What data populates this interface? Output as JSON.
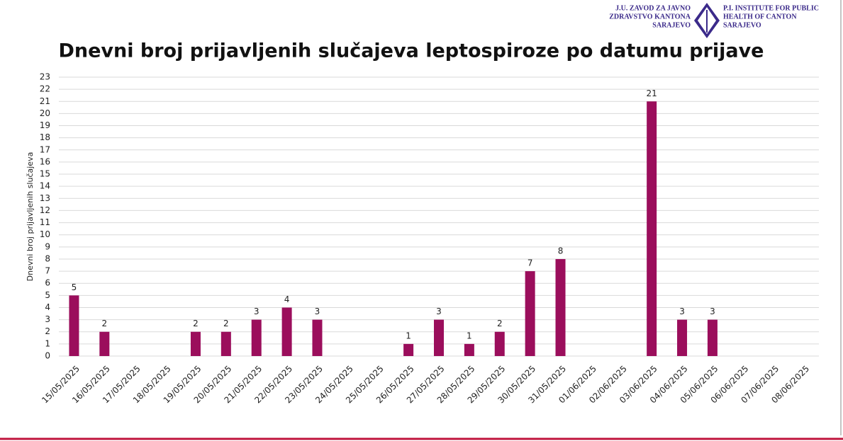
{
  "logo": {
    "left": [
      "J.U. ZAVOD ZA JAVNO",
      "ZDRAVSTVO KANTONA",
      "SARAJEVO"
    ],
    "right": [
      "P.I. INSTITUTE FOR PUBLIC",
      "HEALTH OF CANTON",
      "SARAJEVO"
    ]
  },
  "chart_data": {
    "type": "bar",
    "title": "Dnevni broj prijavljenih slučajeva leptospiroze po datumu prijave",
    "y_label": "Dnevni broj prijavljenih slučajeva",
    "categories": [
      "15/05/2025",
      "16/05/2025",
      "17/05/2025",
      "18/05/2025",
      "19/05/2025",
      "20/05/2025",
      "21/05/2025",
      "22/05/2025",
      "23/05/2025",
      "24/05/2025",
      "25/05/2025",
      "26/05/2025",
      "27/05/2025",
      "28/05/2025",
      "29/05/2025",
      "30/05/2025",
      "31/05/2025",
      "01/06/2025",
      "02/06/2025",
      "03/06/2025",
      "04/06/2025",
      "05/06/2025",
      "06/06/2025",
      "07/06/2025",
      "08/06/2025"
    ],
    "values": [
      5,
      2,
      0,
      0,
      2,
      2,
      3,
      4,
      3,
      0,
      0,
      1,
      3,
      1,
      2,
      7,
      8,
      0,
      0,
      21,
      3,
      3,
      0,
      0,
      0
    ],
    "color": "#9b0e5c",
    "ylim": [
      0,
      23
    ],
    "yticks": [
      0,
      1,
      2,
      3,
      4,
      5,
      6,
      7,
      8,
      9,
      10,
      11,
      12,
      13,
      14,
      15,
      16,
      17,
      18,
      19,
      20,
      21,
      22,
      23
    ],
    "grid": true
  }
}
